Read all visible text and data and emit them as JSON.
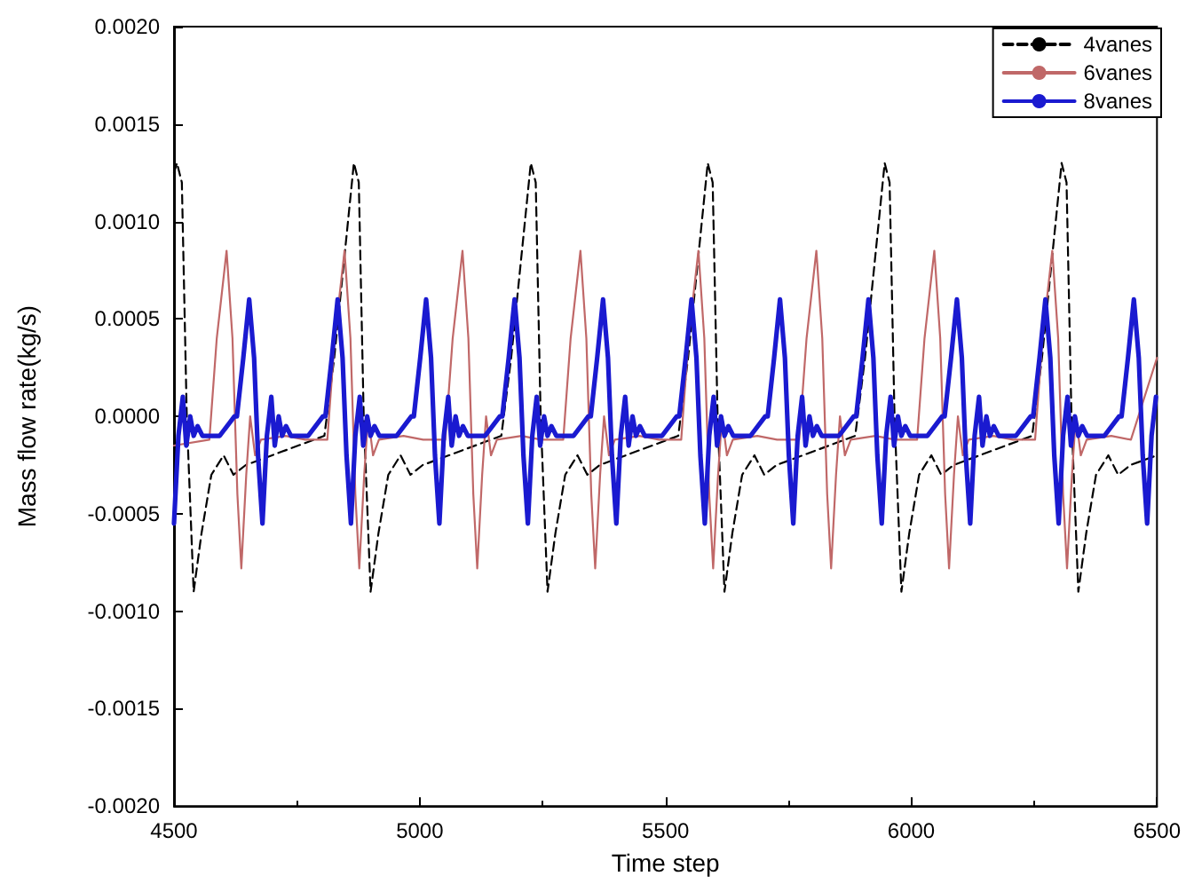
{
  "chart_data": {
    "type": "line",
    "xlabel": "Time step",
    "ylabel": "Mass flow rate(kg/s)",
    "xlim": [
      4500,
      6500
    ],
    "xticks": [
      4500,
      5000,
      5500,
      6000,
      6500
    ],
    "ylim": [
      -0.002,
      0.002
    ],
    "yticks": [
      {
        "value": -0.002,
        "label": "-0.0020"
      },
      {
        "value": -0.0015,
        "label": "-0.0015"
      },
      {
        "value": -0.001,
        "label": "-0.0010"
      },
      {
        "value": -0.0005,
        "label": "-0.0005"
      },
      {
        "value": 0,
        "label": "0.0000"
      },
      {
        "value": 0.0005,
        "label": "0.0005"
      },
      {
        "value": 0.001,
        "label": "0.0010"
      },
      {
        "value": 0.0015,
        "label": "0.0015"
      },
      {
        "value": 0.002,
        "label": "0.0020"
      }
    ],
    "grid": false,
    "legend": "top right",
    "marker": "none",
    "series": [
      {
        "name": "4vanes",
        "color": "#000000",
        "line_style": "dashed",
        "x": [
          4500,
          4506,
          4516,
          4526,
          4540,
          4556,
          4576,
          4601,
          4621,
          4646,
          4806,
          4826,
          4846,
          4866,
          4876,
          4886,
          4900,
          4916,
          4936,
          4961,
          4981,
          5006,
          5166,
          5186,
          5206,
          5226,
          5236,
          5246,
          5260,
          5276,
          5296,
          5321,
          5341,
          5366,
          5526,
          5546,
          5566,
          5586,
          5596,
          5606,
          5620,
          5636,
          5656,
          5681,
          5701,
          5726,
          5886,
          5906,
          5926,
          5946,
          5956,
          5966,
          5980,
          5996,
          6016,
          6041,
          6061,
          6086,
          6246,
          6266,
          6286,
          6306,
          6316,
          6326,
          6340,
          6356,
          6376,
          6401,
          6421,
          6446,
          6500
        ],
        "values": [
          0.00125,
          0.0013,
          0.0012,
          0,
          -0.0009,
          -0.0006,
          -0.0003,
          -0.0002,
          -0.0003,
          -0.00025,
          -0.0001,
          0.0003,
          0.0008,
          0.0013,
          0.0012,
          0,
          -0.0009,
          -0.0006,
          -0.0003,
          -0.0002,
          -0.0003,
          -0.00025,
          -0.0001,
          0.0003,
          0.0008,
          0.0013,
          0.0012,
          0,
          -0.0009,
          -0.0006,
          -0.0003,
          -0.0002,
          -0.0003,
          -0.00025,
          -0.0001,
          0.0003,
          0.0008,
          0.0013,
          0.0012,
          0,
          -0.0009,
          -0.0006,
          -0.0003,
          -0.0002,
          -0.0003,
          -0.00025,
          -0.0001,
          0.0003,
          0.0008,
          0.0013,
          0.0012,
          0,
          -0.0009,
          -0.0006,
          -0.0003,
          -0.0002,
          -0.0003,
          -0.00025,
          -0.0001,
          0.0003,
          0.0008,
          0.0013,
          0.0012,
          0,
          -0.0009,
          -0.0006,
          -0.0003,
          -0.0002,
          -0.0003,
          -0.00025,
          -0.0002
        ]
      },
      {
        "name": "6vanes",
        "color": "#c06868",
        "line_style": "solid",
        "x": [
          4500,
          4572,
          4587,
          4607,
          4619,
          4629,
          4637,
          4647,
          4655,
          4665,
          4677,
          4727,
          4767,
          4812,
          4827,
          4847,
          4859,
          4869,
          4877,
          4887,
          4895,
          4905,
          4917,
          4967,
          5007,
          5052,
          5067,
          5087,
          5099,
          5109,
          5117,
          5127,
          5135,
          5145,
          5157,
          5207,
          5247,
          5292,
          5307,
          5327,
          5339,
          5349,
          5357,
          5367,
          5375,
          5385,
          5397,
          5447,
          5487,
          5532,
          5547,
          5567,
          5579,
          5589,
          5597,
          5607,
          5615,
          5625,
          5637,
          5687,
          5727,
          5772,
          5787,
          5807,
          5819,
          5829,
          5837,
          5847,
          5855,
          5865,
          5877,
          5927,
          5967,
          6012,
          6027,
          6047,
          6059,
          6069,
          6077,
          6087,
          6095,
          6105,
          6117,
          6167,
          6207,
          6252,
          6267,
          6287,
          6299,
          6309,
          6317,
          6327,
          6335,
          6345,
          6357,
          6407,
          6447,
          6500
        ],
        "values": [
          -0.00015,
          -0.00012,
          0.0004,
          0.00085,
          0.0004,
          -0.0004,
          -0.00078,
          -0.0003,
          0,
          -0.0002,
          -0.00012,
          -0.0001,
          -0.00012,
          -0.00012,
          0.0004,
          0.00085,
          0.0004,
          -0.0004,
          -0.00078,
          -0.0003,
          0,
          -0.0002,
          -0.00012,
          -0.0001,
          -0.00012,
          -0.00012,
          0.0004,
          0.00085,
          0.0004,
          -0.0004,
          -0.00078,
          -0.0003,
          0,
          -0.0002,
          -0.00012,
          -0.0001,
          -0.00012,
          -0.00012,
          0.0004,
          0.00085,
          0.0004,
          -0.0004,
          -0.00078,
          -0.0003,
          0,
          -0.0002,
          -0.00012,
          -0.0001,
          -0.00012,
          -0.00012,
          0.0004,
          0.00085,
          0.0004,
          -0.0004,
          -0.00078,
          -0.0003,
          0,
          -0.0002,
          -0.00012,
          -0.0001,
          -0.00012,
          -0.00012,
          0.0004,
          0.00085,
          0.0004,
          -0.0004,
          -0.00078,
          -0.0003,
          0,
          -0.0002,
          -0.00012,
          -0.0001,
          -0.00012,
          -0.00012,
          0.0004,
          0.00085,
          0.0004,
          -0.0004,
          -0.00078,
          -0.0003,
          0,
          -0.0002,
          -0.00012,
          -0.0001,
          -0.00012,
          -0.00012,
          0.0004,
          0.00085,
          0.0004,
          -0.0004,
          -0.00078,
          -0.0003,
          0,
          -0.0002,
          -0.00012,
          -0.0001,
          -0.00012,
          0.0003
        ]
      },
      {
        "name": "8vanes",
        "color": "#1a1ad0",
        "line_style": "solid",
        "x": [
          4500,
          4509,
          4518,
          4525,
          4533,
          4540,
          4548,
          4558,
          4593,
          4623,
          4628,
          4641,
          4653,
          4663,
          4671,
          4680,
          4689,
          4698,
          4705,
          4713,
          4720,
          4728,
          4738,
          4773,
          4803,
          4808,
          4821,
          4833,
          4843,
          4851,
          4860,
          4869,
          4878,
          4885,
          4893,
          4900,
          4908,
          4918,
          4953,
          4983,
          4988,
          5001,
          5013,
          5023,
          5031,
          5040,
          5049,
          5058,
          5065,
          5073,
          5080,
          5088,
          5098,
          5133,
          5163,
          5168,
          5181,
          5193,
          5203,
          5211,
          5220,
          5229,
          5238,
          5245,
          5253,
          5260,
          5268,
          5278,
          5313,
          5343,
          5348,
          5361,
          5373,
          5383,
          5391,
          5400,
          5409,
          5418,
          5425,
          5433,
          5440,
          5448,
          5458,
          5493,
          5523,
          5528,
          5541,
          5553,
          5563,
          5571,
          5580,
          5589,
          5598,
          5605,
          5613,
          5620,
          5628,
          5638,
          5673,
          5703,
          5708,
          5721,
          5733,
          5743,
          5751,
          5760,
          5769,
          5778,
          5785,
          5793,
          5800,
          5808,
          5818,
          5853,
          5883,
          5888,
          5901,
          5913,
          5923,
          5931,
          5940,
          5949,
          5958,
          5965,
          5973,
          5980,
          5988,
          5998,
          6033,
          6063,
          6068,
          6081,
          6093,
          6103,
          6111,
          6120,
          6129,
          6138,
          6145,
          6153,
          6160,
          6168,
          6178,
          6213,
          6243,
          6248,
          6261,
          6273,
          6283,
          6291,
          6300,
          6309,
          6318,
          6325,
          6333,
          6340,
          6348,
          6358,
          6393,
          6423,
          6428,
          6441,
          6453,
          6463,
          6471,
          6480,
          6489,
          6498
        ],
        "values": [
          -0.00055,
          -0.0001,
          0.0001,
          -0.00015,
          0,
          -0.0001,
          -5e-05,
          -0.0001,
          -0.0001,
          0,
          0,
          0.0003,
          0.0006,
          0.0003,
          -0.0002,
          -0.00055,
          -0.0001,
          0.0001,
          -0.00015,
          0,
          -0.0001,
          -5e-05,
          -0.0001,
          -0.0001,
          0,
          0,
          0.0003,
          0.0006,
          0.0003,
          -0.0002,
          -0.00055,
          -0.0001,
          0.0001,
          -0.00015,
          0,
          -0.0001,
          -5e-05,
          -0.0001,
          -0.0001,
          0,
          0,
          0.0003,
          0.0006,
          0.0003,
          -0.0002,
          -0.00055,
          -0.0001,
          0.0001,
          -0.00015,
          0,
          -0.0001,
          -5e-05,
          -0.0001,
          -0.0001,
          0,
          0,
          0.0003,
          0.0006,
          0.0003,
          -0.0002,
          -0.00055,
          -0.0001,
          0.0001,
          -0.00015,
          0,
          -0.0001,
          -5e-05,
          -0.0001,
          -0.0001,
          0,
          0,
          0.0003,
          0.0006,
          0.0003,
          -0.0002,
          -0.00055,
          -0.0001,
          0.0001,
          -0.00015,
          0,
          -0.0001,
          -5e-05,
          -0.0001,
          -0.0001,
          0,
          0,
          0.0003,
          0.0006,
          0.0003,
          -0.0002,
          -0.00055,
          -0.0001,
          0.0001,
          -0.00015,
          0,
          -0.0001,
          -5e-05,
          -0.0001,
          -0.0001,
          0,
          0,
          0.0003,
          0.0006,
          0.0003,
          -0.0002,
          -0.00055,
          -0.0001,
          0.0001,
          -0.00015,
          0,
          -0.0001,
          -5e-05,
          -0.0001,
          -0.0001,
          0,
          0,
          0.0003,
          0.0006,
          0.0003,
          -0.0002,
          -0.00055,
          -0.0001,
          0.0001,
          -0.00015,
          0,
          -0.0001,
          -5e-05,
          -0.0001,
          -0.0001,
          0,
          0,
          0.0003,
          0.0006,
          0.0003,
          -0.0002,
          -0.00055,
          -0.0001,
          0.0001,
          -0.00015,
          0,
          -0.0001,
          -5e-05,
          -0.0001,
          -0.0001,
          0,
          0,
          0.0003,
          0.0006,
          0.0003,
          -0.0002,
          -0.00055,
          -0.0001,
          0.0001,
          -0.00015,
          0,
          -0.0001,
          -5e-05,
          -0.0001,
          -0.0001,
          0,
          0,
          0.0003,
          0.0006,
          0.0003,
          -0.0002,
          -0.00055,
          -0.0001,
          0.0001
        ]
      }
    ]
  }
}
